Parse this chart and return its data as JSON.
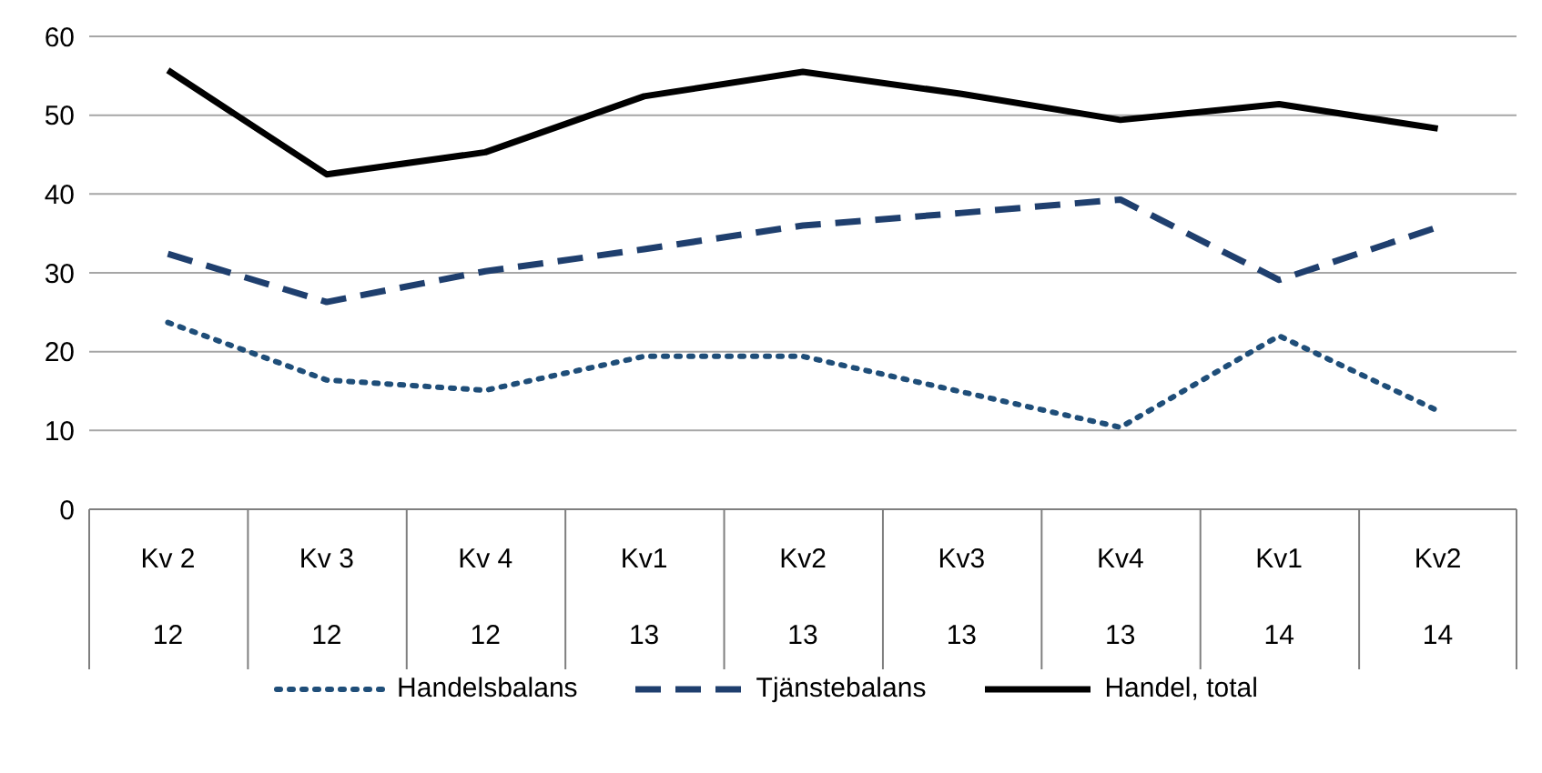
{
  "chart_data": {
    "type": "line",
    "categories": [
      "Kv 2\n12",
      "Kv 3\n12",
      "Kv 4\n12",
      "Kv1\n13",
      "Kv2\n13",
      "Kv3\n13",
      "Kv4\n13",
      "Kv1\n14",
      "Kv2\n14"
    ],
    "series": [
      {
        "name": "Handelsbalans",
        "color": "#1f4e79",
        "line_style": "dotted",
        "values": [
          23.7,
          16.4,
          15.1,
          19.4,
          19.4,
          14.9,
          10.4,
          22.0,
          12.5
        ]
      },
      {
        "name": "Tjänstebalans",
        "color": "#1f3f6e",
        "line_style": "dashed",
        "values": [
          32.4,
          26.3,
          30.2,
          33.0,
          36.0,
          37.6,
          39.3,
          29.1,
          35.8
        ]
      },
      {
        "name": "Handel, total",
        "color": "#000000",
        "line_style": "solid",
        "values": [
          55.7,
          42.5,
          45.3,
          52.4,
          55.5,
          52.7,
          49.4,
          51.4,
          48.3
        ]
      }
    ],
    "ylim": [
      0,
      60
    ],
    "yticks": [
      0,
      10,
      20,
      30,
      40,
      50,
      60
    ],
    "grid": "y",
    "legend": "bottom",
    "marker": "none"
  }
}
